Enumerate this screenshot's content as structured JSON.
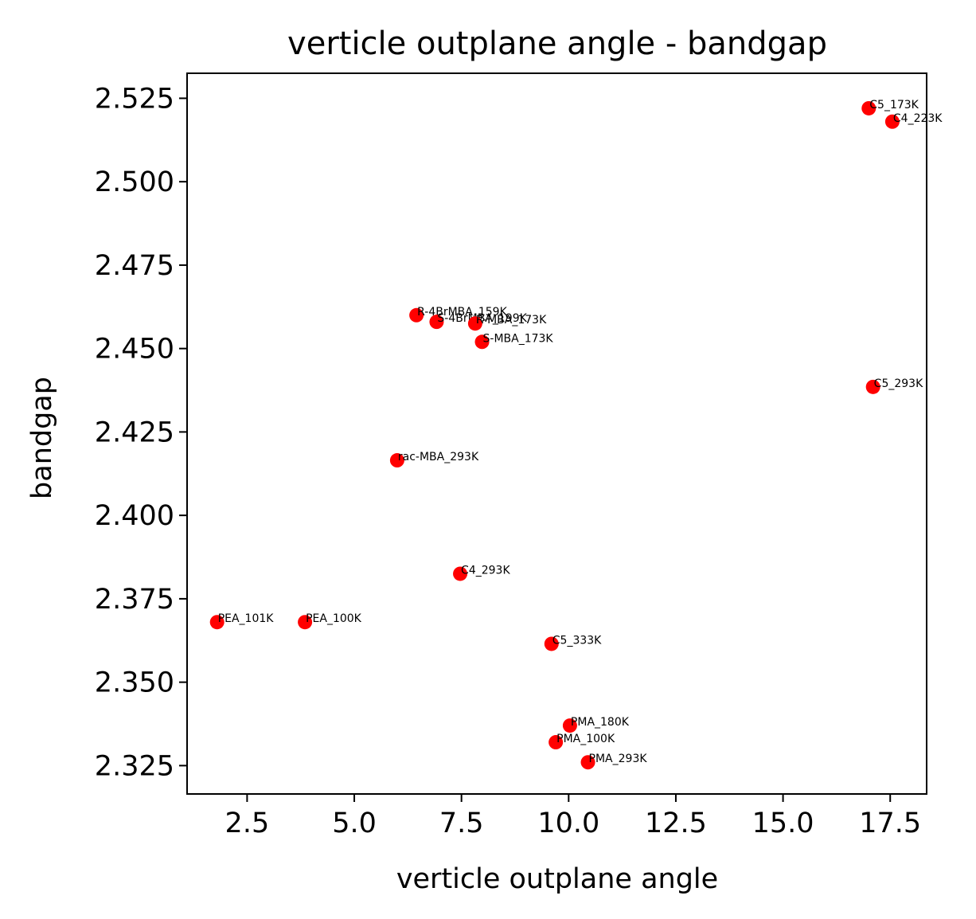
{
  "chart_data": {
    "type": "scatter",
    "title": "verticle outplane angle - bandgap",
    "xlabel": "verticle outplane angle",
    "ylabel": "bandgap",
    "xlim": [
      1.1,
      18.35
    ],
    "ylim": [
      2.3165,
      2.5325
    ],
    "xticks": [
      2.5,
      5.0,
      7.5,
      10.0,
      12.5,
      15.0,
      17.5
    ],
    "xtick_labels": [
      "2.5",
      "5.0",
      "7.5",
      "10.0",
      "12.5",
      "15.0",
      "17.5"
    ],
    "yticks": [
      2.325,
      2.35,
      2.375,
      2.4,
      2.425,
      2.45,
      2.475,
      2.5,
      2.525
    ],
    "ytick_labels": [
      "2.325",
      "2.350",
      "2.375",
      "2.400",
      "2.425",
      "2.450",
      "2.475",
      "2.500",
      "2.525"
    ],
    "grid": false,
    "marker_color": "#ff0000",
    "points": [
      {
        "label": "C5_173K",
        "x": 17.0,
        "y": 2.522
      },
      {
        "label": "C4_223K",
        "x": 17.55,
        "y": 2.518
      },
      {
        "label": "R-4BrMBA_159K",
        "x": 6.45,
        "y": 2.46
      },
      {
        "label": "S-4BrMBA_199K",
        "x": 6.92,
        "y": 2.458
      },
      {
        "label": "R-MBA_173K",
        "x": 7.82,
        "y": 2.4575
      },
      {
        "label": "S-MBA_173K",
        "x": 7.98,
        "y": 2.452
      },
      {
        "label": "C5_293K",
        "x": 17.1,
        "y": 2.4385
      },
      {
        "label": "rac-MBA_293K",
        "x": 6.0,
        "y": 2.4165
      },
      {
        "label": "C4_293K",
        "x": 7.47,
        "y": 2.3825
      },
      {
        "label": "PEA_101K",
        "x": 1.8,
        "y": 2.368
      },
      {
        "label": "PEA_100K",
        "x": 3.85,
        "y": 2.368
      },
      {
        "label": "C5_333K",
        "x": 9.6,
        "y": 2.3615
      },
      {
        "label": "PMA_180K",
        "x": 10.03,
        "y": 2.337
      },
      {
        "label": "PMA_100K",
        "x": 9.7,
        "y": 2.332
      },
      {
        "label": "PMA_293K",
        "x": 10.45,
        "y": 2.326
      }
    ]
  }
}
